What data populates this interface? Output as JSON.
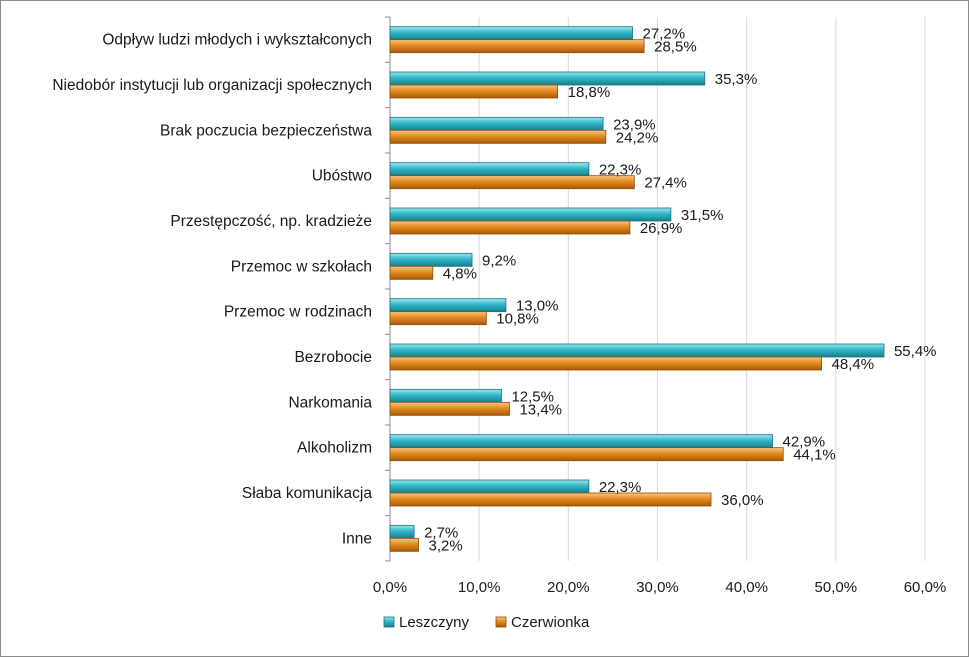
{
  "chart_data": {
    "type": "bar",
    "orientation": "horizontal",
    "categories": [
      "Odpływ ludzi młodych i wykształconych",
      "Niedobór instytucji lub organizacji społecznych",
      "Brak poczucia bezpieczeństwa",
      "Ubóstwo",
      "Przestępczość, np. kradzieże",
      "Przemoc w szkołach",
      "Przemoc w rodzinach",
      "Bezrobocie",
      "Narkomania",
      "Alkoholizm",
      "Słaba komunikacja",
      "Inne"
    ],
    "series": [
      {
        "name": "Leszczyny",
        "color": "#31b6c8",
        "values": [
          27.2,
          35.3,
          23.9,
          22.3,
          31.5,
          9.2,
          13.0,
          55.4,
          12.5,
          42.9,
          22.3,
          2.7
        ],
        "labels": [
          "27,2%",
          "35,3%",
          "23,9%",
          "22,3%",
          "31,5%",
          "9,2%",
          "13,0%",
          "55,4%",
          "12,5%",
          "42,9%",
          "22,3%",
          "2,7%"
        ]
      },
      {
        "name": "Czerwionka",
        "color": "#e58a1f",
        "values": [
          28.5,
          18.8,
          24.2,
          27.4,
          26.9,
          4.8,
          10.8,
          48.4,
          13.4,
          44.1,
          36.0,
          3.2
        ],
        "labels": [
          "28,5%",
          "18,8%",
          "24,2%",
          "27,4%",
          "26,9%",
          "4,8%",
          "10,8%",
          "48,4%",
          "13,4%",
          "44,1%",
          "36,0%",
          "3,2%"
        ]
      }
    ],
    "xlim": [
      0,
      60
    ],
    "ticks": [
      0,
      10,
      20,
      30,
      40,
      50,
      60
    ],
    "tick_labels": [
      "0,0%",
      "10,0%",
      "20,0%",
      "30,0%",
      "40,0%",
      "50,0%",
      "60,0%"
    ],
    "grid": true,
    "legend_position": "bottom"
  }
}
